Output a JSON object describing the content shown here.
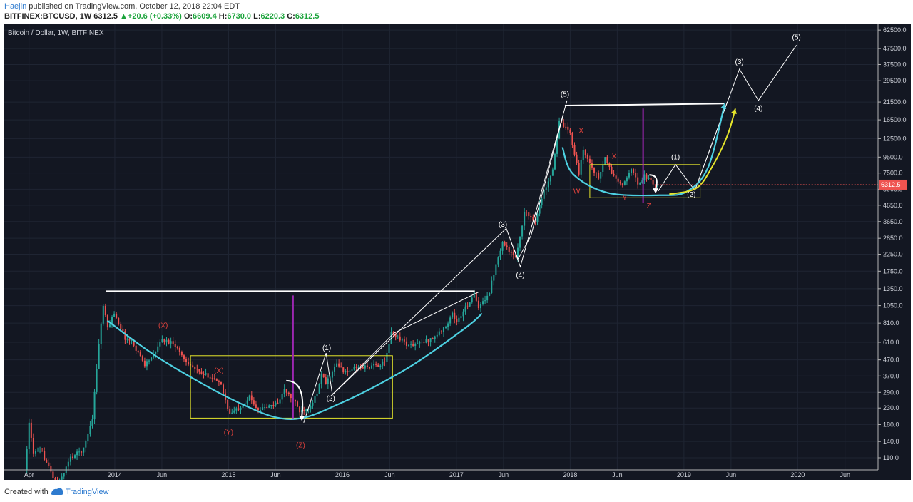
{
  "header": {
    "author": "Haejin",
    "published_text": "published on TradingView.com, October 12, 2018 22:04 EDT",
    "symbol": "BITFINEX:BTCUSD, 1W",
    "last": "6312.5",
    "change_arrow": "▲",
    "change": "+20.6 (+0.33%)",
    "o_label": "O:",
    "o": "6609.4",
    "h_label": "H:",
    "h": "6730.0",
    "l_label": "L:",
    "l": "6220.3",
    "c_label": "C:",
    "c": "6312.5"
  },
  "chart_title": "Bitcoin / Dollar, 1W, BITFINEX",
  "price_tag": "6312.5",
  "footer": {
    "created_with": "Created with",
    "brand": "TradingView"
  },
  "colors": {
    "background": "#131722",
    "up": "#26a69a",
    "down": "#ef5350",
    "cyan": "#4dd0e1",
    "yellow": "#e5e52b",
    "purple": "#9c27b0",
    "white": "#ffffff",
    "wave_red": "#e0423c",
    "price_tag": "#ef5350"
  },
  "chart_data": {
    "type": "candlestick",
    "title": "Bitcoin / Dollar, 1W, BITFINEX",
    "scale": "log",
    "ylim": [
      100,
      66000
    ],
    "y_ticks": [
      62500,
      47500,
      37500,
      29500,
      21500,
      16500,
      12500,
      9500,
      7500,
      5900,
      4650,
      3650,
      2850,
      2250,
      1750,
      1350,
      1050,
      810,
      610,
      470,
      370,
      290,
      230,
      180,
      140,
      110
    ],
    "x_range": [
      "2013-03-25",
      "2020-12-31"
    ],
    "x_ticks": [
      {
        "label": "Apr",
        "date": "2013-04-01"
      },
      {
        "label": "2014",
        "date": "2014-01-01"
      },
      {
        "label": "Jun",
        "date": "2014-06-01"
      },
      {
        "label": "2015",
        "date": "2015-01-01"
      },
      {
        "label": "Jun",
        "date": "2015-06-01"
      },
      {
        "label": "2016",
        "date": "2016-01-01"
      },
      {
        "label": "Jun",
        "date": "2016-06-01"
      },
      {
        "label": "2017",
        "date": "2017-01-01"
      },
      {
        "label": "Jun",
        "date": "2017-06-01"
      },
      {
        "label": "2018",
        "date": "2018-01-01"
      },
      {
        "label": "Jun",
        "date": "2018-06-01"
      },
      {
        "label": "2019",
        "date": "2019-01-01"
      },
      {
        "label": "Jun",
        "date": "2019-06-01"
      },
      {
        "label": "2020",
        "date": "2020-01-01"
      },
      {
        "label": "Jun",
        "date": "2020-06-01"
      }
    ],
    "last_price": 6312.5,
    "price_anchors": [
      [
        "2013-03-25",
        92
      ],
      [
        "2013-04-08",
        180
      ],
      [
        "2013-04-22",
        120
      ],
      [
        "2013-05-20",
        118
      ],
      [
        "2013-07-08",
        72
      ],
      [
        "2013-08-19",
        110
      ],
      [
        "2013-09-30",
        125
      ],
      [
        "2013-10-28",
        200
      ],
      [
        "2013-11-18",
        600
      ],
      [
        "2013-12-02",
        1050
      ],
      [
        "2013-12-16",
        750
      ],
      [
        "2014-01-06",
        950
      ],
      [
        "2014-02-10",
        650
      ],
      [
        "2014-03-03",
        620
      ],
      [
        "2014-04-14",
        440
      ],
      [
        "2014-05-19",
        520
      ],
      [
        "2014-06-02",
        630
      ],
      [
        "2014-07-14",
        610
      ],
      [
        "2014-08-18",
        480
      ],
      [
        "2014-09-22",
        410
      ],
      [
        "2014-10-13",
        380
      ],
      [
        "2014-11-10",
        370
      ],
      [
        "2014-12-15",
        320
      ],
      [
        "2015-01-12",
        210
      ],
      [
        "2015-02-09",
        230
      ],
      [
        "2015-03-16",
        270
      ],
      [
        "2015-04-13",
        225
      ],
      [
        "2015-05-18",
        235
      ],
      [
        "2015-06-15",
        250
      ],
      [
        "2015-07-06",
        300
      ],
      [
        "2015-08-03",
        260
      ],
      [
        "2015-08-24",
        220
      ],
      [
        "2015-09-21",
        232
      ],
      [
        "2015-10-19",
        280
      ],
      [
        "2015-11-02",
        380
      ],
      [
        "2015-11-16",
        330
      ],
      [
        "2015-12-21",
        440
      ],
      [
        "2016-01-18",
        390
      ],
      [
        "2016-02-22",
        420
      ],
      [
        "2016-04-11",
        425
      ],
      [
        "2016-05-23",
        450
      ],
      [
        "2016-06-13",
        700
      ],
      [
        "2016-07-04",
        660
      ],
      [
        "2016-08-08",
        580
      ],
      [
        "2016-09-19",
        605
      ],
      [
        "2016-10-24",
        650
      ],
      [
        "2016-11-28",
        740
      ],
      [
        "2016-12-26",
        930
      ],
      [
        "2017-01-09",
        820
      ],
      [
        "2017-02-06",
        1010
      ],
      [
        "2017-03-06",
        1250
      ],
      [
        "2017-03-20",
        1000
      ],
      [
        "2017-04-24",
        1300
      ],
      [
        "2017-05-22",
        2200
      ],
      [
        "2017-06-05",
        2700
      ],
      [
        "2017-07-17",
        2100
      ],
      [
        "2017-08-14",
        4200
      ],
      [
        "2017-09-18",
        3700
      ],
      [
        "2017-10-16",
        5700
      ],
      [
        "2017-11-13",
        8000
      ],
      [
        "2017-12-04",
        16000
      ],
      [
        "2017-12-18",
        15000
      ],
      [
        "2018-01-08",
        13500
      ],
      [
        "2018-02-05",
        7500
      ],
      [
        "2018-02-19",
        10500
      ],
      [
        "2018-03-19",
        8200
      ],
      [
        "2018-04-09",
        6900
      ],
      [
        "2018-04-30",
        9400
      ],
      [
        "2018-05-21",
        7500
      ],
      [
        "2018-06-25",
        6100
      ],
      [
        "2018-07-23",
        8200
      ],
      [
        "2018-08-13",
        6300
      ],
      [
        "2018-09-03",
        7200
      ],
      [
        "2018-10-08",
        6312.5
      ]
    ],
    "annotations": {
      "horizontal_lines": [
        {
          "from": [
            "2013-12-03",
            1300
          ],
          "to": [
            "2017-03-01",
            1300
          ],
          "color": "white"
        },
        {
          "from": [
            "2017-12-15",
            20400
          ],
          "to": [
            "2019-05-10",
            21000
          ],
          "color": "white"
        }
      ],
      "vertical_lines": [
        {
          "date": "2015-07-27",
          "from": 195,
          "to": 1220,
          "color": "purple"
        },
        {
          "date": "2018-08-23",
          "from": 4800,
          "to": 19500,
          "color": "purple"
        }
      ],
      "boxes": [
        {
          "x": [
            "2014-09-01",
            "2016-06-10"
          ],
          "y": [
            198,
            500
          ],
          "color": "yellow"
        },
        {
          "x": [
            "2018-03-05",
            "2019-02-22"
          ],
          "y": [
            5200,
            8500
          ],
          "color": "yellow"
        }
      ],
      "cyan_curves": [
        [
          [
            "2013-12-08",
            840
          ],
          [
            "2014-06-01",
            470
          ],
          [
            "2015-02-01",
            250
          ],
          [
            "2015-07-20",
            195
          ],
          [
            "2016-01-01",
            250
          ],
          [
            "2016-08-01",
            420
          ],
          [
            "2017-02-01",
            760
          ],
          [
            "2017-03-24",
            935
          ]
        ],
        [
          [
            "2017-12-07",
            11000
          ],
          [
            "2018-01-10",
            7400
          ],
          [
            "2018-05-01",
            5600
          ],
          [
            "2018-10-15",
            5400
          ],
          [
            "2019-01-10",
            5700
          ],
          [
            "2019-03-20",
            8200
          ],
          [
            "2019-05-12",
            21000
          ]
        ]
      ],
      "yellow_curves": [
        [
          [
            "2018-11-15",
            5480
          ],
          [
            "2019-02-10",
            6000
          ],
          [
            "2019-04-01",
            8200
          ],
          [
            "2019-05-20",
            13000
          ],
          [
            "2019-06-15",
            19500
          ]
        ]
      ],
      "white_polylines": [
        [
          [
            "2015-08-30",
            185
          ],
          [
            "2015-11-10",
            520
          ],
          [
            "2015-11-30",
            280
          ],
          [
            "2017-06-10",
            3300
          ],
          [
            "2017-07-25",
            1870
          ],
          [
            "2017-12-22",
            22000
          ]
        ],
        [
          [
            "2015-11-25",
            275
          ],
          [
            "2016-06-15",
            700
          ],
          [
            "2017-03-15",
            1290
          ]
        ],
        [
          [
            "2017-06-25",
            2700
          ],
          [
            "2017-07-18",
            2100
          ],
          [
            "2017-08-28",
            2950
          ],
          [
            "2017-12-10",
            17800
          ]
        ],
        [
          [
            "2018-10-11",
            5750
          ],
          [
            "2018-12-05",
            8500
          ],
          [
            "2019-02-05",
            5800
          ],
          [
            "2019-06-28",
            35000
          ],
          [
            "2019-08-28",
            22000
          ],
          [
            "2019-12-28",
            50000
          ]
        ],
        [
          [
            "2019-02-05",
            5800
          ],
          [
            "2019-05-20",
            21500
          ]
        ]
      ],
      "hooks": [
        {
          "start": [
            "2015-07-05",
            345
          ],
          "end": [
            "2015-08-24",
            190
          ],
          "color": "white"
        },
        {
          "start": [
            "2018-09-12",
            7300
          ],
          "end": [
            "2018-10-02",
            5550
          ],
          "color": "white"
        }
      ],
      "wave_labels": [
        {
          "text": "(X)",
          "at": [
            "2014-06-05",
            780
          ],
          "color": "wave_red"
        },
        {
          "text": "(X)",
          "at": [
            "2014-12-01",
            400
          ],
          "color": "wave_red"
        },
        {
          "text": "(Y)",
          "at": [
            "2015-01-01",
            160
          ],
          "color": "wave_red"
        },
        {
          "text": "(Z)",
          "at": [
            "2015-08-20",
            132
          ],
          "color": "wave_red"
        },
        {
          "text": "(1)",
          "at": [
            "2015-11-12",
            560
          ],
          "color": "white"
        },
        {
          "text": "(2)",
          "at": [
            "2015-11-25",
            265
          ],
          "color": "white"
        },
        {
          "text": "(3)",
          "at": [
            "2017-05-30",
            3500
          ],
          "color": "white"
        },
        {
          "text": "(4)",
          "at": [
            "2017-07-25",
            1650
          ],
          "color": "white"
        },
        {
          "text": "(5)",
          "at": [
            "2017-12-15",
            24000
          ],
          "color": "white"
        },
        {
          "text": "X",
          "at": [
            "2018-02-05",
            14000
          ],
          "color": "wave_red"
        },
        {
          "text": "W",
          "at": [
            "2018-01-22",
            5700
          ],
          "color": "wave_red"
        },
        {
          "text": "X",
          "at": [
            "2018-05-22",
            9600
          ],
          "color": "wave_red"
        },
        {
          "text": "Y",
          "at": [
            "2018-06-25",
            5200
          ],
          "color": "wave_red"
        },
        {
          "text": "Z",
          "at": [
            "2018-09-10",
            4600
          ],
          "color": "wave_red"
        },
        {
          "text": "(1)",
          "at": [
            "2018-12-05",
            9500
          ],
          "color": "white"
        },
        {
          "text": "(2)",
          "at": [
            "2019-01-25",
            5450
          ],
          "color": "white"
        },
        {
          "text": "(3)",
          "at": [
            "2019-06-28",
            39000
          ],
          "color": "white"
        },
        {
          "text": "(4)",
          "at": [
            "2019-08-28",
            19600
          ],
          "color": "white"
        },
        {
          "text": "(5)",
          "at": [
            "2019-12-28",
            56000
          ],
          "color": "white"
        }
      ]
    }
  }
}
